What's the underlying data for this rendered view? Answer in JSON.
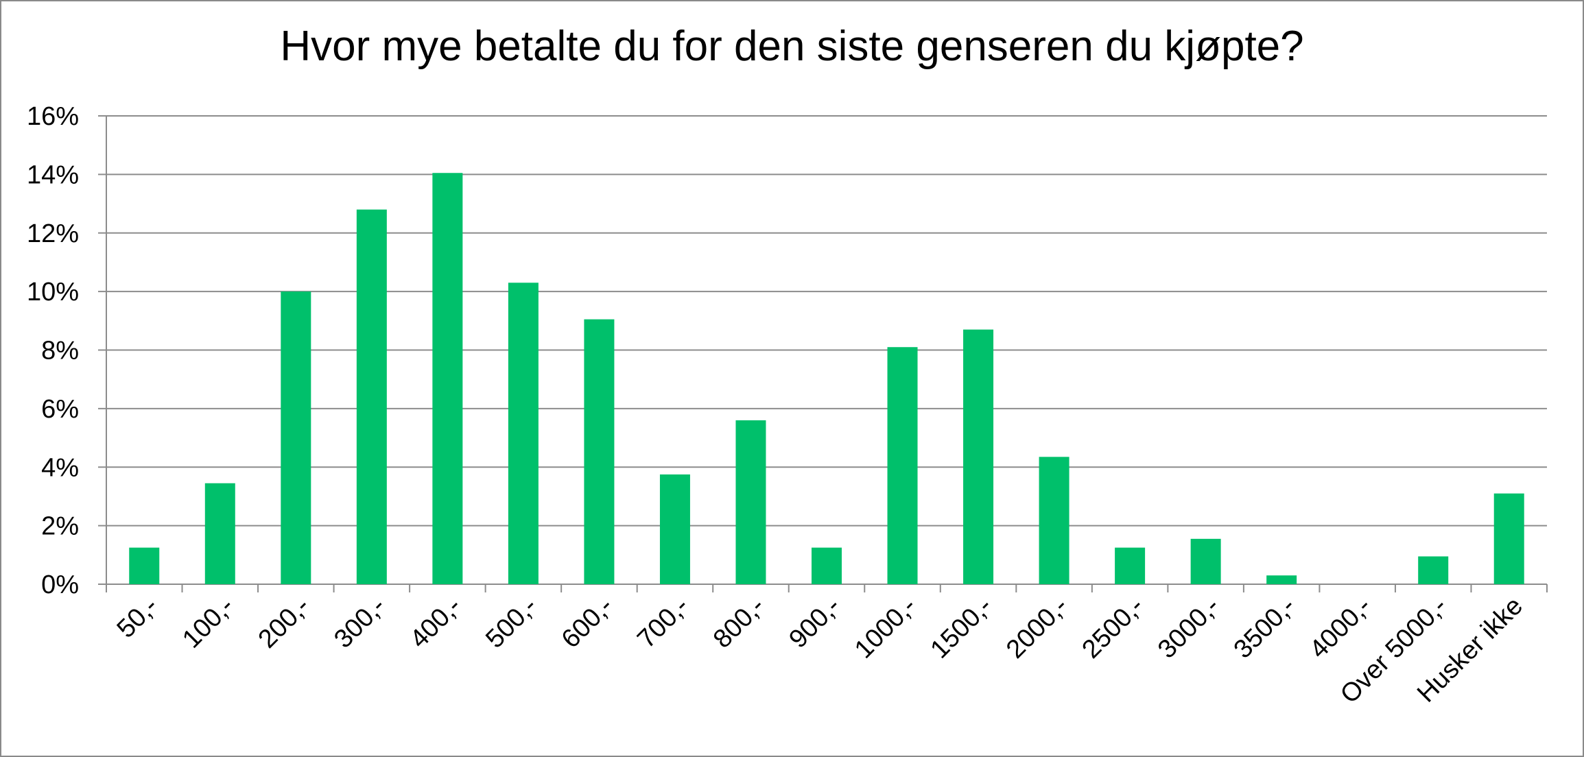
{
  "chart_data": {
    "type": "bar",
    "title": "Hvor mye betalte du for den siste genseren du kjøpte?",
    "xlabel": "",
    "ylabel": "",
    "categories": [
      "50,-",
      "100,-",
      "200,-",
      "300,-",
      "400,-",
      "500,-",
      "600,-",
      "700,-",
      "800,-",
      "900,-",
      "1000,-",
      "1500,-",
      "2000,-",
      "2500,-",
      "3000,-",
      "3500,-",
      "4000,-",
      "Over 5000,-",
      "Husker ikke"
    ],
    "values": [
      1.25,
      3.45,
      10.0,
      12.8,
      14.05,
      10.3,
      9.05,
      3.75,
      5.6,
      1.25,
      8.1,
      8.7,
      4.35,
      1.25,
      1.55,
      0.3,
      0.0,
      0.95,
      3.1
    ],
    "value_unit": "%",
    "ylim": [
      0,
      16
    ],
    "yticks": [
      0,
      2,
      4,
      6,
      8,
      10,
      12,
      14,
      16
    ],
    "ytick_labels": [
      "0%",
      "2%",
      "4%",
      "6%",
      "8%",
      "10%",
      "12%",
      "14%",
      "16%"
    ],
    "grid": true,
    "legend": "none",
    "bar_color": "#00c06b"
  }
}
